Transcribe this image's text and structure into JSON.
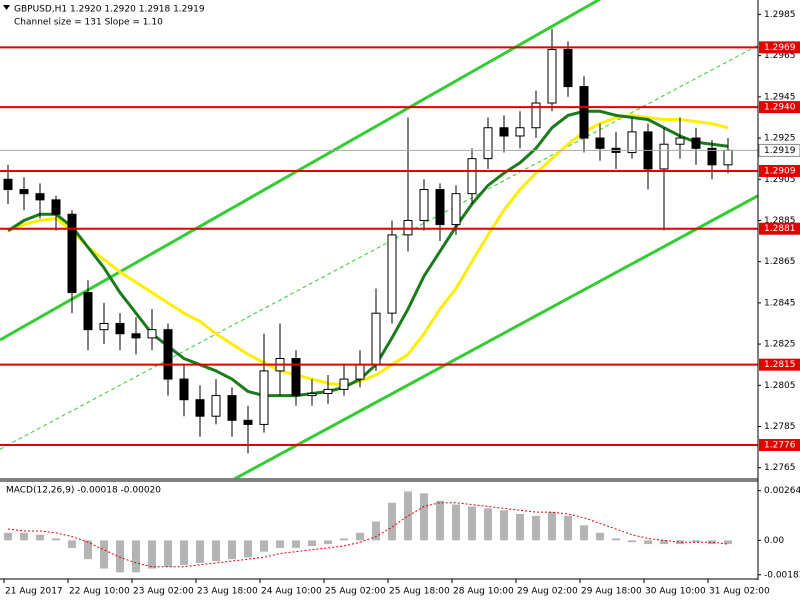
{
  "chart_data": {
    "type": "candlestick",
    "title": "GBPUSD,H1  1.2920 1.2920 1.2918 1.2919",
    "subtitle": "Channel size = 131 Slope = 1.10",
    "candles": [
      [
        1.2905,
        1.2912,
        1.2893,
        1.29
      ],
      [
        1.29,
        1.2906,
        1.289,
        1.2898
      ],
      [
        1.2898,
        1.2903,
        1.2886,
        1.2895
      ],
      [
        1.2895,
        1.2897,
        1.288,
        1.2888
      ],
      [
        1.2888,
        1.289,
        1.284,
        1.285
      ],
      [
        1.285,
        1.2856,
        1.2822,
        1.2832
      ],
      [
        1.2832,
        1.2845,
        1.2825,
        1.2835
      ],
      [
        1.2835,
        1.284,
        1.2822,
        1.283
      ],
      [
        1.283,
        1.2838,
        1.282,
        1.2828
      ],
      [
        1.2828,
        1.2842,
        1.2822,
        1.2832
      ],
      [
        1.2832,
        1.2835,
        1.28,
        1.2808
      ],
      [
        1.2808,
        1.2815,
        1.279,
        1.2798
      ],
      [
        1.2798,
        1.2805,
        1.278,
        1.279
      ],
      [
        1.279,
        1.2808,
        1.2786,
        1.28
      ],
      [
        1.28,
        1.2804,
        1.278,
        1.2788
      ],
      [
        1.2788,
        1.2795,
        1.2772,
        1.2786
      ],
      [
        1.2786,
        1.283,
        1.2782,
        1.2812
      ],
      [
        1.2812,
        1.2835,
        1.28,
        1.2818
      ],
      [
        1.2818,
        1.2822,
        1.2795,
        1.28
      ],
      [
        1.28,
        1.2808,
        1.2795,
        1.2801
      ],
      [
        1.2801,
        1.281,
        1.2796,
        1.2803
      ],
      [
        1.2803,
        1.2815,
        1.28,
        1.2808
      ],
      [
        1.2808,
        1.2822,
        1.2804,
        1.2815
      ],
      [
        1.2815,
        1.2852,
        1.2812,
        1.284
      ],
      [
        1.284,
        1.2885,
        1.2835,
        1.2878
      ],
      [
        1.2878,
        1.2935,
        1.287,
        1.2885
      ],
      [
        1.2885,
        1.2905,
        1.288,
        1.29
      ],
      [
        1.29,
        1.2903,
        1.2875,
        1.2883
      ],
      [
        1.2883,
        1.2902,
        1.2878,
        1.2898
      ],
      [
        1.2898,
        1.292,
        1.2893,
        1.2915
      ],
      [
        1.2915,
        1.2935,
        1.291,
        1.293
      ],
      [
        1.293,
        1.2936,
        1.2918,
        1.2926
      ],
      [
        1.2926,
        1.2938,
        1.292,
        1.293
      ],
      [
        1.293,
        1.2948,
        1.2925,
        1.2942
      ],
      [
        1.2942,
        1.2978,
        1.2938,
        1.2968
      ],
      [
        1.2968,
        1.2972,
        1.2945,
        1.295
      ],
      [
        1.295,
        1.2955,
        1.2918,
        1.2925
      ],
      [
        1.2925,
        1.2932,
        1.2914,
        1.292
      ],
      [
        1.292,
        1.2928,
        1.291,
        1.2918
      ],
      [
        1.2918,
        1.2935,
        1.2915,
        1.2928
      ],
      [
        1.2928,
        1.2932,
        1.29,
        1.291
      ],
      [
        1.291,
        1.293,
        1.288,
        1.2922
      ],
      [
        1.2922,
        1.2935,
        1.2915,
        1.2925
      ],
      [
        1.2925,
        1.293,
        1.2912,
        1.292
      ],
      [
        1.292,
        1.2924,
        1.2905,
        1.2912
      ],
      [
        1.2912,
        1.2925,
        1.2908,
        1.2919
      ]
    ],
    "xlim": [
      -0.5,
      46.875
    ],
    "ylim": [
      1.276,
      1.2992
    ],
    "yticks": [
      1.2985,
      1.2965,
      1.2945,
      1.2925,
      1.2905,
      1.2885,
      1.2865,
      1.2845,
      1.2825,
      1.2805,
      1.2785,
      1.2765
    ],
    "time_labels": [
      "21 Aug 2017",
      "22 Aug 10:00",
      "23 Aug 02:00",
      "23 Aug 18:00",
      "24 Aug 10:00",
      "25 Aug 02:00",
      "25 Aug 18:00",
      "28 Aug 10:00",
      "29 Aug 02:00",
      "29 Aug 18:00",
      "30 Aug 10:00",
      "31 Aug 02:00"
    ],
    "levels": [
      {
        "value": 1.2969,
        "label": "1.2969"
      },
      {
        "value": 1.294,
        "label": "1.2940"
      },
      {
        "value": 1.2909,
        "label": "1.2909"
      },
      {
        "value": 1.2881,
        "label": "1.2881"
      },
      {
        "value": 1.2815,
        "label": "1.2815"
      },
      {
        "value": 1.2776,
        "label": "1.2776"
      }
    ],
    "level_color": "#e00000",
    "current": {
      "value": 1.2919,
      "label": "1.2919"
    },
    "ma_fast": {
      "color": "#1b7a1b",
      "values": [
        1.288,
        1.2885,
        1.2888,
        1.2888,
        1.2882,
        1.2872,
        1.2862,
        1.285,
        1.284,
        1.283,
        1.2824,
        1.2818,
        1.2815,
        1.2812,
        1.2808,
        1.2802,
        1.28,
        1.28,
        1.28,
        1.2801,
        1.2802,
        1.2804,
        1.2808,
        1.2815,
        1.2828,
        1.2842,
        1.2858,
        1.287,
        1.2882,
        1.2893,
        1.2902,
        1.2908,
        1.2913,
        1.292,
        1.293,
        1.2936,
        1.2938,
        1.2938,
        1.2936,
        1.2935,
        1.2934,
        1.293,
        1.2926,
        1.2923,
        1.2922,
        1.2921
      ]
    },
    "ma_slow": {
      "color": "#ffee00",
      "values": [
        1.288,
        1.2883,
        1.2885,
        1.2886,
        1.288,
        1.2872,
        1.2866,
        1.286,
        1.2855,
        1.285,
        1.2845,
        1.284,
        1.2836,
        1.283,
        1.2825,
        1.282,
        1.2816,
        1.2812,
        1.281,
        1.2808,
        1.2806,
        1.2805,
        1.2807,
        1.281,
        1.2815,
        1.282,
        1.283,
        1.2842,
        1.2852,
        1.2865,
        1.2878,
        1.289,
        1.29,
        1.2908,
        1.2915,
        1.2922,
        1.2928,
        1.2932,
        1.2935,
        1.2936,
        1.2935,
        1.2934,
        1.2934,
        1.2933,
        1.2932,
        1.293
      ]
    },
    "channel": {
      "color": "#33cc33",
      "upper": [
        1.2827,
        1.3036
      ],
      "lower": [
        1.2698,
        1.2897
      ],
      "middle": [
        1.2774,
        1.297
      ]
    },
    "macd": {
      "title": "MACD(12,26,9) -0.00018 -0.00020",
      "ylim": [
        -0.002,
        0.0031
      ],
      "yticks": [
        0.00264,
        {
          "value": 0,
          "label": "0.00"
        },
        -0.00183
      ],
      "histogram_color": "#b4b4b4",
      "signal_color": "#e00000",
      "histogram": [
        0.0004,
        0.0004,
        0.0003,
        0.0001,
        -0.0004,
        -0.001,
        -0.0015,
        -0.0017,
        -0.0017,
        -0.0015,
        -0.0014,
        -0.0013,
        -0.0012,
        -0.0011,
        -0.001,
        -0.0009,
        -0.0006,
        -0.0004,
        -0.0004,
        -0.0003,
        -0.0002,
        0.0001,
        0.0004,
        0.001,
        0.002,
        0.0026,
        0.0025,
        0.0021,
        0.0019,
        0.0018,
        0.0017,
        0.0016,
        0.0014,
        0.0013,
        0.0015,
        0.0013,
        0.0008,
        0.0004,
        0.0001,
        -0.0001,
        -0.0002,
        -0.0002,
        -0.0002,
        -0.0001,
        -0.0002,
        -0.0002
      ],
      "signal": [
        0.0006,
        0.0005,
        0.0005,
        0.0004,
        0.0002,
        -0.0001,
        -0.0005,
        -0.0009,
        -0.0012,
        -0.0014,
        -0.0014,
        -0.0014,
        -0.0013,
        -0.0012,
        -0.0011,
        -0.001,
        -0.0009,
        -0.0007,
        -0.0006,
        -0.0005,
        -0.0004,
        -0.0003,
        -0.0001,
        0.0002,
        0.0007,
        0.0013,
        0.0018,
        0.002,
        0.002,
        0.0019,
        0.0018,
        0.0017,
        0.0016,
        0.0015,
        0.0015,
        0.0014,
        0.0012,
        0.0009,
        0.0006,
        0.0003,
        0.0001,
        0,
        -0.0001,
        -0.0001,
        -0.0001,
        -0.0002
      ]
    }
  }
}
